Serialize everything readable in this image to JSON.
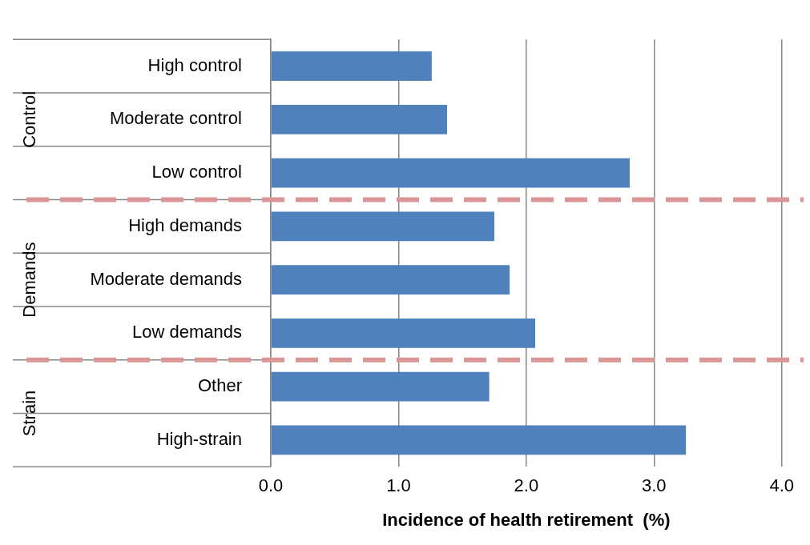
{
  "chart_data": {
    "type": "bar",
    "orientation": "horizontal",
    "xlabel": "Incidence of health retirement  (%)",
    "categories": [
      "High control",
      "Moderate control",
      "Low control",
      "High demands",
      "Moderate demands",
      "Low demands",
      "Other",
      "High-strain"
    ],
    "values": [
      1.26,
      1.38,
      2.81,
      1.75,
      1.87,
      2.07,
      1.71,
      3.25
    ],
    "color": "#4f81bd",
    "xlim": [
      0,
      4
    ],
    "xticks": [
      {
        "value": 0,
        "label": "0.0"
      },
      {
        "value": 1,
        "label": "1.0"
      },
      {
        "value": 2,
        "label": "2.0"
      },
      {
        "value": 3,
        "label": "3.0"
      },
      {
        "value": 4,
        "label": "4.0"
      }
    ],
    "grid": "x",
    "legend": false,
    "annotations": [
      "Control",
      "Demands",
      "Strain"
    ]
  }
}
